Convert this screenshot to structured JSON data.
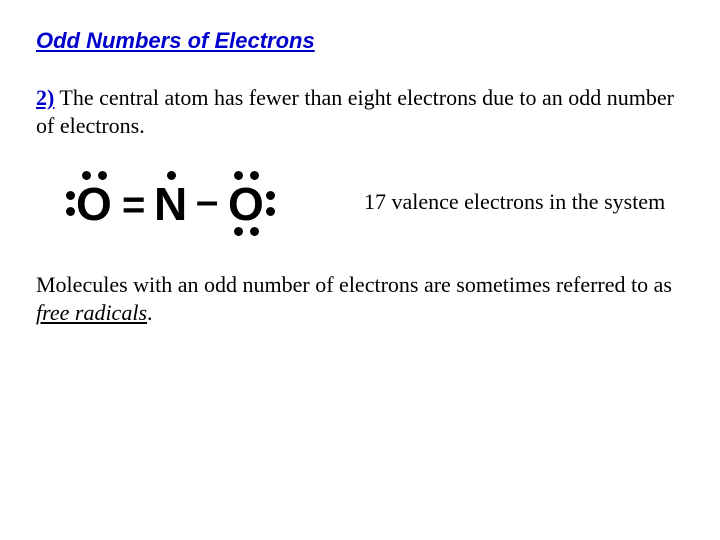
{
  "heading": "Odd Numbers of Electrons",
  "item_number": "2)",
  "intro_text": " The central atom has fewer than eight electrons due to an odd number of electrons.",
  "lewis": {
    "left_atom": "O",
    "double_bond": "=",
    "center_atom": "N",
    "single_bond": "–",
    "right_atom": "O"
  },
  "caption": "17 valence electrons in the system",
  "closing_pre": "Molecules with an odd number of electrons are sometimes referred to as ",
  "closing_term": "free radicals",
  "closing_post": ".",
  "colors": {
    "accent": "#0000cc",
    "text": "#000000",
    "background": "#ffffff",
    "dot": "#000000"
  }
}
